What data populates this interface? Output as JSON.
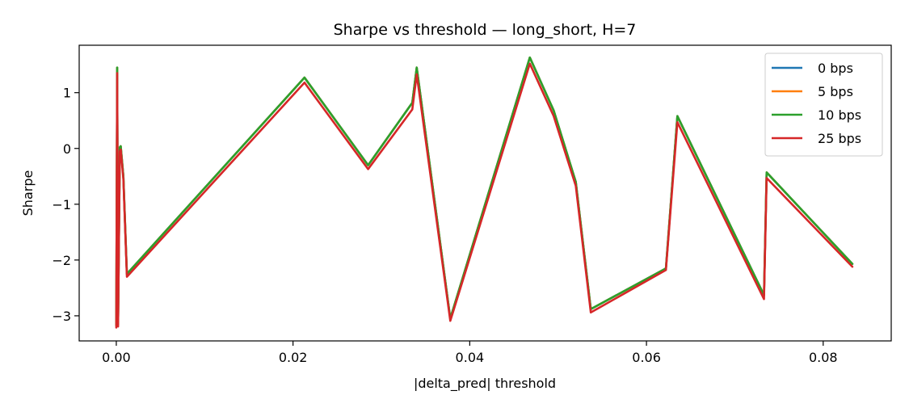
{
  "chart_data": {
    "type": "line",
    "title": "Sharpe vs threshold — long_short, H=7",
    "xlabel": "|delta_pred| threshold",
    "ylabel": "Sharpe",
    "xlim": [
      -0.0042,
      0.0877
    ],
    "ylim": [
      -3.45,
      1.85
    ],
    "xticks": [
      0.0,
      0.02,
      0.04,
      0.06,
      0.08
    ],
    "xtick_labels": [
      "0.00",
      "0.02",
      "0.04",
      "0.06",
      "0.08"
    ],
    "yticks": [
      -3,
      -2,
      -1,
      0,
      1
    ],
    "ytick_labels": [
      "−3",
      "−2",
      "−1",
      "0",
      "1"
    ],
    "grid": false,
    "legend_position": "top-right",
    "x": [
      0.0,
      0.0001,
      0.0002,
      0.0004,
      0.0005,
      0.0008,
      0.0012,
      0.0213,
      0.0285,
      0.0335,
      0.034,
      0.0378,
      0.0468,
      0.0495,
      0.052,
      0.0537,
      0.0622,
      0.0635,
      0.0733,
      0.0736,
      0.0833
    ],
    "series": [
      {
        "name": "0 bps",
        "color": "#1f77b4",
        "values": [
          -3.17,
          1.45,
          -3.15,
          0.02,
          0.04,
          -0.5,
          -2.25,
          1.27,
          -0.3,
          0.82,
          1.45,
          -3.05,
          1.63,
          0.68,
          -0.6,
          -2.88,
          -2.15,
          0.58,
          -2.63,
          -0.43,
          -2.07
        ]
      },
      {
        "name": "5 bps",
        "color": "#ff7f0e",
        "values": [
          -3.17,
          1.45,
          -3.15,
          0.02,
          0.04,
          -0.5,
          -2.25,
          1.27,
          -0.3,
          0.82,
          1.45,
          -3.05,
          1.63,
          0.68,
          -0.6,
          -2.88,
          -2.15,
          0.58,
          -2.63,
          -0.43,
          -2.07
        ]
      },
      {
        "name": "10 bps",
        "color": "#2ca02c",
        "values": [
          -3.17,
          1.45,
          -3.15,
          0.02,
          0.04,
          -0.5,
          -2.25,
          1.27,
          -0.3,
          0.82,
          1.45,
          -3.05,
          1.63,
          0.68,
          -0.6,
          -2.88,
          -2.15,
          0.58,
          -2.63,
          -0.43,
          -2.07
        ]
      },
      {
        "name": "25 bps",
        "color": "#d62728",
        "values": [
          -3.21,
          1.35,
          -3.19,
          -0.05,
          -0.02,
          -0.55,
          -2.3,
          1.18,
          -0.37,
          0.7,
          1.33,
          -3.09,
          1.52,
          0.58,
          -0.67,
          -2.94,
          -2.18,
          0.47,
          -2.7,
          -0.53,
          -2.12
        ]
      }
    ]
  }
}
